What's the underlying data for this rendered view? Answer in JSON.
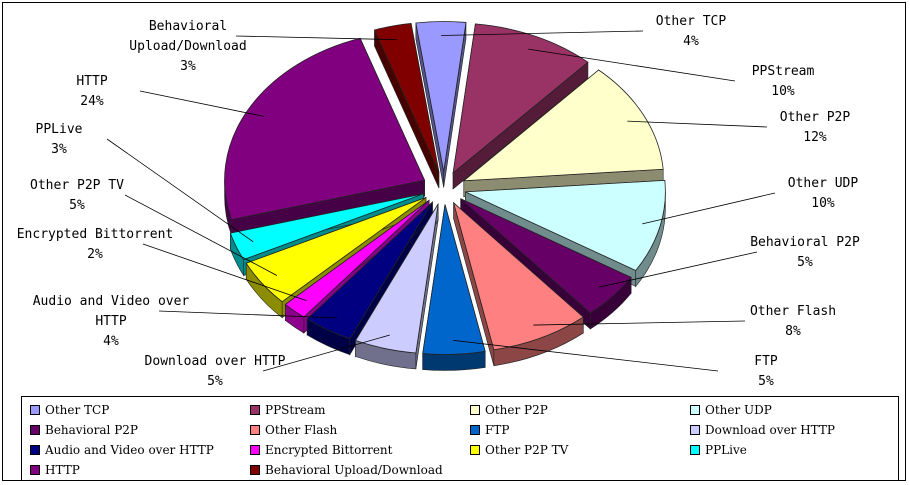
{
  "chart_data": {
    "type": "pie",
    "style": "3d-exploded",
    "slices": [
      {
        "name": "Other TCP",
        "value": 4,
        "label": "4%",
        "color": "#9999FF"
      },
      {
        "name": "PPStream",
        "value": 10,
        "label": "10%",
        "color": "#993366"
      },
      {
        "name": "Other P2P",
        "value": 12,
        "label": "12%",
        "color": "#FFFFCC"
      },
      {
        "name": "Other UDP",
        "value": 10,
        "label": "10%",
        "color": "#CCFFFF"
      },
      {
        "name": "Behavioral P2P",
        "value": 5,
        "label": "5%",
        "color": "#660066"
      },
      {
        "name": "Other Flash",
        "value": 8,
        "label": "8%",
        "color": "#FF8080"
      },
      {
        "name": "FTP",
        "value": 5,
        "label": "5%",
        "color": "#0066CC"
      },
      {
        "name": "Download over HTTP",
        "value": 5,
        "label": "5%",
        "color": "#CCCCFF"
      },
      {
        "name": "Audio and Video over HTTP",
        "value": 4,
        "label": "4%",
        "color": "#000080"
      },
      {
        "name": "Encrypted Bittorrent",
        "value": 2,
        "label": "2%",
        "color": "#FF00FF"
      },
      {
        "name": "Other P2P TV",
        "value": 5,
        "label": "5%",
        "color": "#FFFF00"
      },
      {
        "name": "PPLive",
        "value": 3,
        "label": "3%",
        "color": "#00FFFF"
      },
      {
        "name": "HTTP",
        "value": 24,
        "label": "24%",
        "color": "#800080"
      },
      {
        "name": "Behavioral Upload/Download",
        "value": 3,
        "label": "3%",
        "color": "#800000"
      }
    ],
    "legend_placement": "bottom"
  }
}
